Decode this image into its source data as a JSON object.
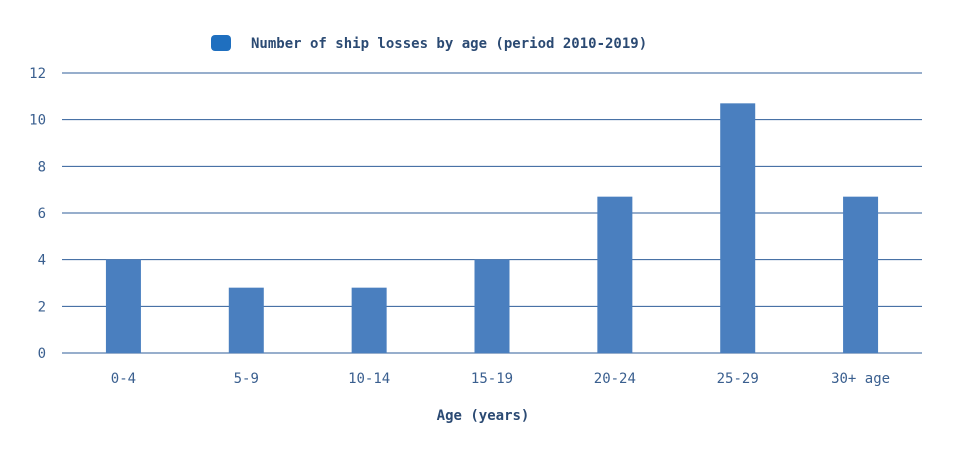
{
  "chart_data": {
    "type": "bar",
    "categories": [
      "0-4",
      "5-9",
      "10-14",
      "15-19",
      "20-24",
      "25-29",
      "30+ age"
    ],
    "series": [
      {
        "name": "Number of ship losses by age (period 2010-2019)",
        "values": [
          4,
          2.8,
          2.8,
          4,
          6.7,
          10.7,
          6.7
        ],
        "color": "#4a7fbf"
      }
    ],
    "xlabel": "Age (years)",
    "ylabel": "",
    "ylim": [
      0,
      12
    ],
    "yticks": [
      0,
      2,
      4,
      6,
      8,
      10,
      12
    ],
    "grid": true,
    "legend_position": "top-center",
    "gridline_color": "#2f5e9a"
  }
}
